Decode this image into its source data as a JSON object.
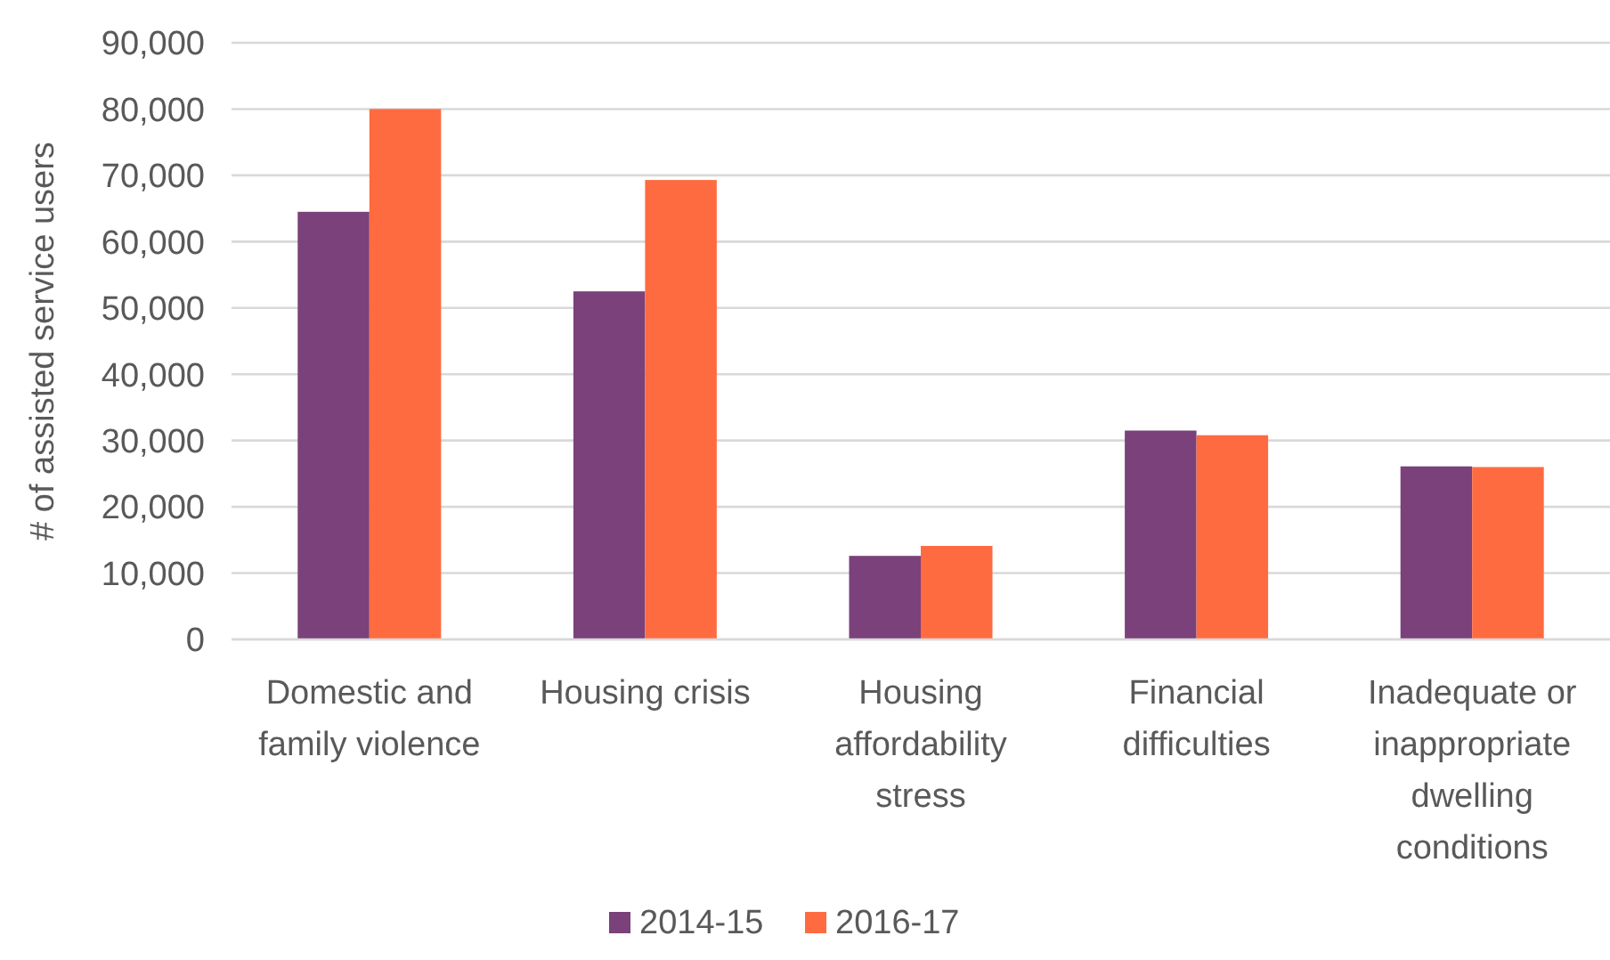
{
  "chart_data": {
    "type": "bar",
    "ylabel": "# of assisted service users",
    "categories": [
      "Domestic and family violence",
      "Housing crisis",
      "Housing affordability stress",
      "Financial difficulties",
      "Inadequate or inappropriate dwelling conditions"
    ],
    "series": [
      {
        "name": "2014-15",
        "color": "#7a417a",
        "values": [
          64500,
          52500,
          12600,
          31500,
          26100
        ]
      },
      {
        "name": "2016-17",
        "color": "#ff6b40",
        "values": [
          80000,
          69300,
          14100,
          30800,
          26000
        ]
      }
    ],
    "ylim": [
      0,
      90000
    ],
    "yticks": [
      {
        "value": 0,
        "label": "0"
      },
      {
        "value": 10000,
        "label": "10,000"
      },
      {
        "value": 20000,
        "label": "20,000"
      },
      {
        "value": 30000,
        "label": "30,000"
      },
      {
        "value": 40000,
        "label": "40,000"
      },
      {
        "value": 50000,
        "label": "50,000"
      },
      {
        "value": 60000,
        "label": "60,000"
      },
      {
        "value": 70000,
        "label": "70,000"
      },
      {
        "value": 80000,
        "label": "80,000"
      },
      {
        "value": 90000,
        "label": "90,000"
      }
    ],
    "grid": "y",
    "legend": "bottom"
  }
}
